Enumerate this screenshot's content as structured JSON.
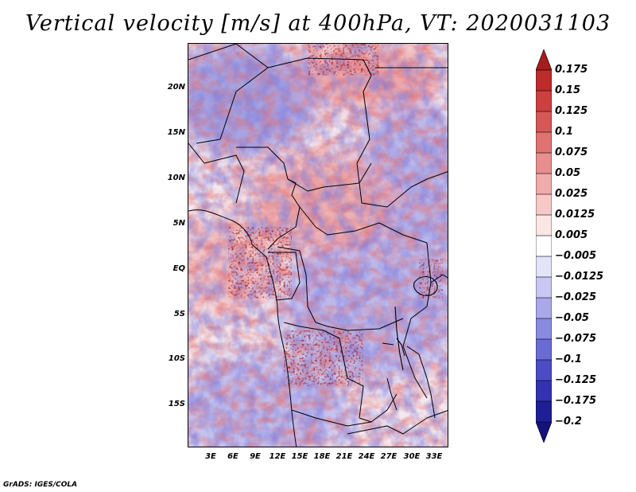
{
  "title": "Vertical velocity [m/s] at 400hPa, VT: 2020031103",
  "credit": "GrADS: IGES/COLA",
  "map": {
    "variable": "vertical velocity",
    "units": "m/s",
    "level": "400hPa",
    "valid_time": "2020031103",
    "lat_labels": [
      "20N",
      "15N",
      "10N",
      "5N",
      "EQ",
      "5S",
      "10S",
      "15S"
    ],
    "lon_labels": [
      "3E",
      "6E",
      "9E",
      "12E",
      "15E",
      "18E",
      "21E",
      "24E",
      "27E",
      "30E",
      "33E"
    ]
  },
  "legend": {
    "labels": [
      "0.175",
      "0.15",
      "0.125",
      "0.1",
      "0.075",
      "0.05",
      "0.025",
      "0.0125",
      "0.005",
      "-0.005",
      "-0.0125",
      "-0.025",
      "-0.05",
      "-0.075",
      "-0.1",
      "-0.125",
      "-0.175",
      "-0.2"
    ],
    "colors": [
      "#a61c1c",
      "#bd2b2b",
      "#cc4040",
      "#d65757",
      "#e07272",
      "#e88e8e",
      "#f0abab",
      "#f6c9c9",
      "#fbe6e6",
      "#ffffff",
      "#e3e3fa",
      "#c8c8f2",
      "#a9a9ea",
      "#8a8ae0",
      "#6b6bd6",
      "#4c4cc6",
      "#3232b2",
      "#1e1e96",
      "#12127a"
    ]
  }
}
